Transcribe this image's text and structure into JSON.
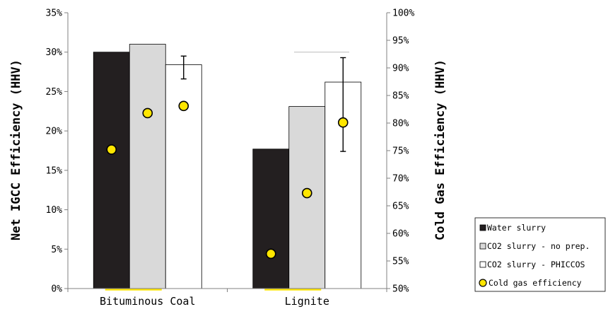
{
  "chart_data": {
    "type": "bar",
    "categories": [
      "Bituminous Coal",
      "Lignite"
    ],
    "series": [
      {
        "name": "Water slurry",
        "values": [
          30.0,
          17.7
        ],
        "color": "#231f20"
      },
      {
        "name": "CO2 slurry - no prep.",
        "values": [
          31.0,
          23.1
        ],
        "color": "#d9d9d9"
      },
      {
        "name": "CO2 slurry - PHICCOS",
        "values": [
          28.4,
          26.2
        ],
        "color": "#ffffff",
        "error_bars": [
          [
            26.6,
            29.5
          ],
          [
            17.4,
            29.3
          ]
        ]
      }
    ],
    "secondary_series": {
      "name": "Cold gas efficiency",
      "type": "scatter",
      "color": "#ffe600",
      "values": [
        [
          75.2,
          81.8,
          83.1
        ],
        [
          56.3,
          67.3,
          80.1
        ]
      ]
    },
    "ylabel": "Net IGCC Efficiency (HHV)",
    "y2label": "Cold Gas Efficiency (HHV)",
    "ylim": [
      0,
      35
    ],
    "y2lim": [
      50,
      100
    ],
    "yticks": [
      "0%",
      "5%",
      "10%",
      "15%",
      "20%",
      "25%",
      "30%",
      "35%"
    ],
    "y2ticks": [
      "50%",
      "55%",
      "60%",
      "65%",
      "70%",
      "75%",
      "80%",
      "85%",
      "90%",
      "95%",
      "100%"
    ],
    "legend_position": "bottom-right",
    "grid": false
  }
}
